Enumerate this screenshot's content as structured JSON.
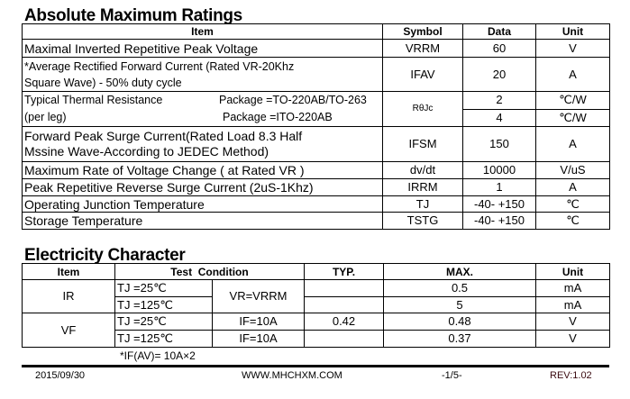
{
  "amr": {
    "title": "Absolute Maximum Ratings",
    "headers": [
      "Item",
      "Symbol",
      "Data",
      "Unit"
    ],
    "rows": [
      {
        "item": "Maximal Inverted Repetitive  Peak Voltage",
        "symbol": "VRRM",
        "data": "60",
        "unit": "V"
      },
      {
        "item": "*Average Rectified Forward Current (Rated VR-20Khz Square Wave) - 50% duty cycle",
        "symbol": "IFAV",
        "data": "20",
        "unit": "A"
      },
      {
        "item1": "Typical Thermal Resistance",
        "pkg1": "Package =TO-220AB/TO-263",
        "item2": "(per leg)",
        "pkg2": "Package =ITO-220AB",
        "symbol": "RθJc",
        "data1": "2",
        "data2": "4",
        "unit1": "℃/W",
        "unit2": "℃/W"
      },
      {
        "item": "Forward Peak Surge Current(Rated Load 8.3 Half Mssine Wave-According to JEDEC Method)",
        "symbol": "IFSM",
        "data": "150",
        "unit": "A"
      },
      {
        "item": "Maximum Rate of Voltage Change ( at Rated VR )",
        "symbol": "dv/dt",
        "data": "10000",
        "unit": "V/uS"
      },
      {
        "item": "Peak Repetitive Reverse Surge Current (2uS-1Khz)",
        "symbol": "IRRM",
        "data": "1",
        "unit": "A"
      },
      {
        "item": "Operating Junction Temperature",
        "symbol": "TJ",
        "data": "-40- +150",
        "unit": "℃"
      },
      {
        "item": "Storage Temperature",
        "symbol": "TSTG",
        "data": "-40- +150",
        "unit": "℃"
      }
    ]
  },
  "ec": {
    "title": "Electricity Character",
    "headers": [
      "Item",
      "Test  Condition",
      "TYP.",
      "MAX.",
      "Unit"
    ],
    "ir": {
      "item": "IR",
      "t1": "TJ =25℃",
      "t2": "TJ =125℃",
      "cond": "VR=VRRM",
      "typ1": "",
      "typ2": "",
      "max1": "0.5",
      "max2": "5",
      "unit1": "mA",
      "unit2": "mA"
    },
    "vf": {
      "item": "VF",
      "t1": "TJ =25℃",
      "t2": "TJ =125℃",
      "cond1": "IF=10A",
      "cond2": "IF=10A",
      "typ1": "0.42",
      "typ2": "",
      "max1": "0.48",
      "max2": "0.37",
      "unit1": "V",
      "unit2": "V"
    },
    "note": "*IF(AV)= 10A×2"
  },
  "footer": {
    "date": "2015/09/30",
    "url": "WWW.MHCHXM.COM",
    "page": "-1/5-",
    "rev": "REV:1.02"
  }
}
